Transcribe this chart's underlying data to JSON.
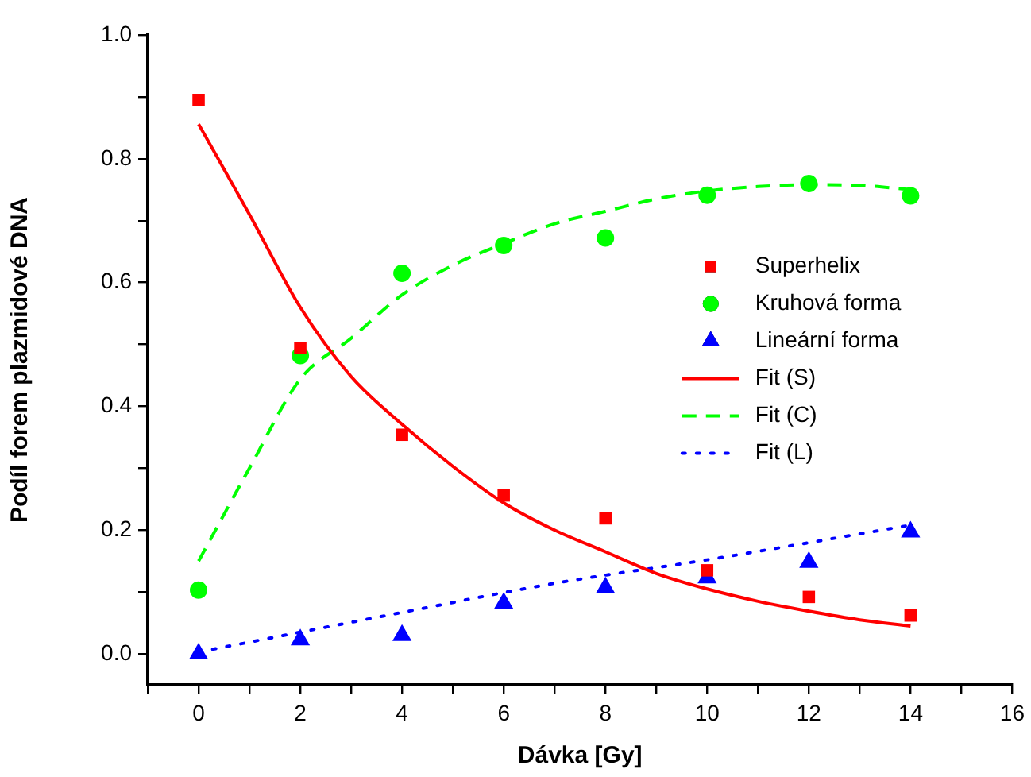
{
  "chart_data": {
    "type": "scatter",
    "xlabel": "Dávka [Gy]",
    "ylabel": "Podíl forem plazmidové DNA",
    "xlim": [
      -1,
      16
    ],
    "xticks": [
      {
        "value": -1,
        "label": null
      },
      0,
      {
        "value": 1,
        "label": null
      },
      2,
      {
        "value": 3,
        "label": null
      },
      4,
      {
        "value": 5,
        "label": null
      },
      6,
      {
        "value": 7,
        "label": null
      },
      8,
      {
        "value": 9,
        "label": null
      },
      10,
      {
        "value": 11,
        "label": null
      },
      12,
      {
        "value": 13,
        "label": null
      },
      14,
      {
        "value": 15,
        "label": null
      },
      16
    ],
    "ylim": [
      -0.05,
      1.0
    ],
    "yticks": [
      {
        "value": 0,
        "label": "0.0"
      },
      {
        "value": 0.1,
        "label": null
      },
      0.2,
      {
        "value": 0.3,
        "label": null
      },
      0.4,
      {
        "value": 0.5,
        "label": null
      },
      0.6,
      {
        "value": 0.7,
        "label": null
      },
      0.8,
      {
        "value": 0.9,
        "label": null
      },
      {
        "value": 1,
        "label": "1.0"
      }
    ],
    "grid": false,
    "legend": "right",
    "series": [
      {
        "name": "Superhelix",
        "marker": "square",
        "color": "#ff0000",
        "x": [
          0,
          2,
          4,
          6,
          8,
          10,
          12,
          14
        ],
        "values": [
          0.895,
          0.494,
          0.354,
          0.256,
          0.219,
          0.135,
          0.092,
          0.062
        ]
      },
      {
        "name": "Kruhová forma",
        "marker": "circle",
        "color": "#00ff00",
        "x": [
          0,
          2,
          4,
          6,
          8,
          10,
          12,
          14
        ],
        "values": [
          0.103,
          0.482,
          0.615,
          0.66,
          0.672,
          0.741,
          0.76,
          0.74
        ]
      },
      {
        "name": "Lineární forma",
        "marker": "triangle",
        "color": "#0000ff",
        "x": [
          0,
          2,
          4,
          6,
          8,
          10,
          12,
          14
        ],
        "values": [
          0.0,
          0.023,
          0.03,
          0.082,
          0.107,
          0.123,
          0.148,
          0.197
        ]
      },
      {
        "name": "Fit (S)",
        "type": "line",
        "line_style": "solid",
        "color": "#ff0000",
        "x": [
          0,
          1,
          2,
          3,
          4,
          5,
          6,
          7,
          8,
          9,
          10,
          11,
          12,
          13,
          14
        ],
        "values": [
          0.856,
          0.71,
          0.56,
          0.448,
          0.371,
          0.303,
          0.244,
          0.2,
          0.165,
          0.13,
          0.105,
          0.085,
          0.069,
          0.055,
          0.045
        ]
      },
      {
        "name": "Fit (C)",
        "type": "line",
        "line_style": "dashed",
        "color": "#00ff00",
        "x": [
          0,
          1,
          2,
          3,
          4,
          5,
          6,
          7,
          8,
          9,
          10,
          11,
          12,
          13,
          14
        ],
        "values": [
          0.15,
          0.3,
          0.444,
          0.51,
          0.58,
          0.628,
          0.663,
          0.695,
          0.715,
          0.735,
          0.748,
          0.755,
          0.758,
          0.757,
          0.75
        ]
      },
      {
        "name": "Fit (L)",
        "type": "line",
        "line_style": "dotted",
        "color": "#0000ff",
        "x": [
          0,
          4,
          7,
          10,
          14
        ],
        "values": [
          0.003,
          0.067,
          0.114,
          0.152,
          0.208
        ]
      }
    ]
  }
}
